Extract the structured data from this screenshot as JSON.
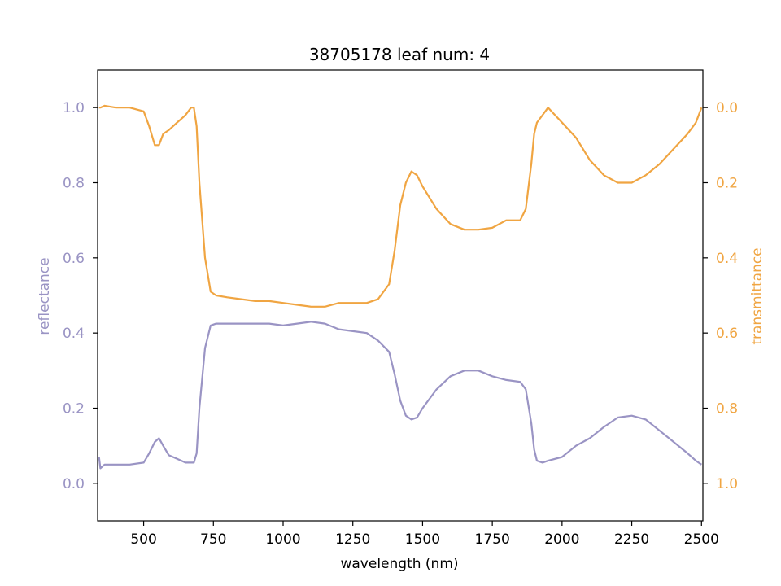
{
  "chart_data": {
    "type": "line",
    "title": "38705178 leaf num: 4",
    "xlabel": "wavelength (nm)",
    "ylabel_left": "reflectance",
    "ylabel_right": "transmittance",
    "xlim": [
      335,
      2505
    ],
    "ylim_left": [
      -0.1,
      1.1
    ],
    "ylim_right_inverted": [
      1.1,
      -0.1
    ],
    "x_ticks": [
      "500",
      "750",
      "1000",
      "1250",
      "1500",
      "1750",
      "2000",
      "2250",
      "2500"
    ],
    "y_left_ticks": [
      "0.0",
      "0.2",
      "0.4",
      "0.6",
      "0.8",
      "1.0"
    ],
    "y_right_ticks": [
      "0.0",
      "0.2",
      "0.4",
      "0.6",
      "0.8",
      "1.0"
    ],
    "colors": {
      "reflectance": "#9a94c4",
      "transmittance": "#f0a542"
    },
    "series": [
      {
        "axis": "left",
        "x": [
          340,
          345,
          360,
          400,
          450,
          500,
          520,
          540,
          555,
          570,
          590,
          620,
          650,
          680,
          690,
          700,
          720,
          740,
          760,
          800,
          850,
          900,
          950,
          1000,
          1050,
          1100,
          1150,
          1200,
          1250,
          1300,
          1340,
          1380,
          1400,
          1420,
          1440,
          1460,
          1480,
          1500,
          1550,
          1600,
          1650,
          1700,
          1750,
          1800,
          1850,
          1870,
          1890,
          1900,
          1910,
          1930,
          1950,
          2000,
          2050,
          2100,
          2150,
          2200,
          2250,
          2300,
          2350,
          2400,
          2450,
          2480,
          2500
        ],
        "y": [
          0.07,
          0.04,
          0.05,
          0.05,
          0.05,
          0.055,
          0.08,
          0.11,
          0.12,
          0.1,
          0.075,
          0.065,
          0.055,
          0.055,
          0.08,
          0.2,
          0.36,
          0.42,
          0.425,
          0.425,
          0.425,
          0.425,
          0.425,
          0.42,
          0.425,
          0.43,
          0.425,
          0.41,
          0.405,
          0.4,
          0.38,
          0.35,
          0.29,
          0.22,
          0.18,
          0.17,
          0.175,
          0.2,
          0.25,
          0.285,
          0.3,
          0.3,
          0.285,
          0.275,
          0.27,
          0.25,
          0.16,
          0.09,
          0.06,
          0.055,
          0.06,
          0.07,
          0.1,
          0.12,
          0.15,
          0.175,
          0.18,
          0.17,
          0.14,
          0.11,
          0.08,
          0.06,
          0.05
        ]
      },
      {
        "axis": "right",
        "x": [
          340,
          345,
          360,
          400,
          450,
          500,
          520,
          540,
          555,
          570,
          590,
          620,
          650,
          670,
          680,
          690,
          700,
          720,
          740,
          760,
          800,
          850,
          900,
          950,
          1000,
          1050,
          1100,
          1150,
          1200,
          1250,
          1300,
          1340,
          1380,
          1400,
          1420,
          1440,
          1460,
          1480,
          1500,
          1550,
          1600,
          1650,
          1700,
          1750,
          1800,
          1850,
          1870,
          1890,
          1900,
          1910,
          1930,
          1950,
          2000,
          2050,
          2100,
          2150,
          2200,
          2250,
          2300,
          2350,
          2400,
          2450,
          2480,
          2500
        ],
        "y": [
          0.0,
          0.0,
          -0.005,
          0.0,
          0.0,
          0.01,
          0.05,
          0.1,
          0.1,
          0.07,
          0.06,
          0.04,
          0.02,
          0.0,
          0.0,
          0.05,
          0.2,
          0.4,
          0.49,
          0.5,
          0.505,
          0.51,
          0.515,
          0.515,
          0.52,
          0.525,
          0.53,
          0.53,
          0.52,
          0.52,
          0.52,
          0.51,
          0.47,
          0.38,
          0.26,
          0.2,
          0.17,
          0.18,
          0.21,
          0.27,
          0.31,
          0.325,
          0.325,
          0.32,
          0.3,
          0.3,
          0.27,
          0.15,
          0.07,
          0.04,
          0.02,
          0.0,
          0.04,
          0.08,
          0.14,
          0.18,
          0.2,
          0.2,
          0.18,
          0.15,
          0.11,
          0.07,
          0.04,
          0.0
        ]
      }
    ]
  }
}
